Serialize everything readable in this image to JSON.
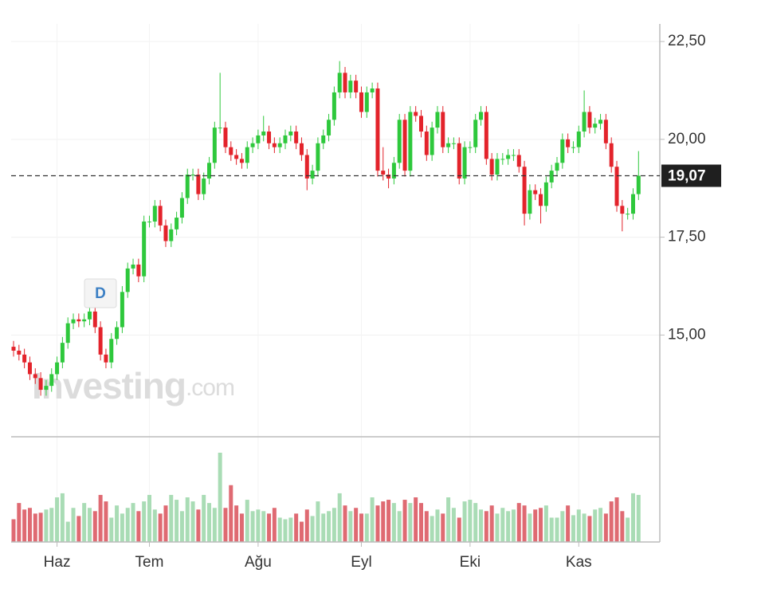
{
  "chart_data": {
    "type": "candlestick",
    "x": [
      null,
      null,
      null,
      null,
      null,
      null,
      null,
      null,
      "Haz",
      null,
      null,
      null,
      null,
      null,
      null,
      null,
      null,
      null,
      null,
      null,
      null,
      null,
      null,
      null,
      null,
      "Tem",
      null,
      null,
      null,
      null,
      null,
      null,
      null,
      null,
      null,
      null,
      null,
      null,
      null,
      null,
      null,
      null,
      null,
      null,
      null,
      "Ağu",
      null,
      null,
      null,
      null,
      null,
      null,
      null,
      null,
      null,
      null,
      null,
      null,
      null,
      null,
      null,
      null,
      null,
      null,
      "Eyl",
      null,
      null,
      null,
      null,
      null,
      null,
      null,
      null,
      null,
      null,
      null,
      null,
      null,
      null,
      null,
      null,
      null,
      null,
      null,
      "Eki",
      null,
      null,
      null,
      null,
      null,
      null,
      null,
      null,
      null,
      null,
      null,
      null,
      null,
      null,
      null,
      null,
      null,
      null,
      null,
      "Kas",
      null,
      null,
      null,
      null,
      null,
      null,
      null,
      null,
      null,
      null,
      null
    ],
    "open": [
      14.7,
      14.6,
      14.5,
      14.3,
      14.0,
      13.9,
      13.6,
      13.7,
      14.0,
      14.3,
      14.8,
      15.3,
      15.4,
      15.35,
      15.4,
      15.6,
      15.2,
      14.5,
      14.3,
      14.9,
      15.2,
      16.1,
      16.7,
      16.8,
      16.5,
      17.9,
      17.9,
      18.3,
      17.8,
      17.4,
      17.7,
      18.0,
      18.5,
      19.1,
      19.1,
      18.6,
      19.0,
      19.4,
      20.3,
      20.3,
      19.8,
      19.6,
      19.5,
      19.4,
      19.8,
      19.9,
      20.1,
      20.2,
      19.9,
      19.8,
      19.9,
      20.1,
      20.2,
      19.9,
      19.6,
      19.0,
      19.2,
      19.9,
      20.1,
      20.5,
      21.2,
      21.7,
      21.2,
      21.5,
      21.2,
      20.7,
      21.2,
      21.3,
      19.2,
      19.1,
      19.0,
      19.4,
      20.5,
      19.2,
      20.7,
      20.6,
      20.2,
      19.6,
      20.3,
      20.7,
      19.8,
      19.9,
      19.9,
      19.0,
      19.8,
      19.8,
      20.5,
      20.7,
      19.5,
      19.1,
      19.5,
      19.5,
      19.6,
      19.6,
      19.3,
      18.1,
      18.7,
      18.6,
      18.3,
      18.9,
      19.2,
      19.4,
      20.0,
      19.8,
      19.8,
      20.2,
      20.7,
      20.3,
      20.4,
      20.5,
      19.9,
      19.3,
      18.3,
      18.1,
      18.1,
      18.6
    ],
    "high": [
      14.85,
      14.75,
      14.65,
      14.45,
      14.15,
      14.05,
      13.85,
      14.15,
      14.45,
      14.95,
      15.45,
      15.55,
      15.55,
      15.55,
      15.75,
      15.75,
      15.35,
      14.65,
      15.05,
      15.35,
      16.25,
      16.85,
      16.95,
      16.95,
      18.05,
      18.05,
      18.45,
      18.45,
      17.95,
      17.85,
      18.15,
      18.65,
      19.25,
      19.25,
      19.25,
      19.15,
      19.55,
      20.45,
      21.7,
      20.45,
      19.95,
      19.75,
      19.65,
      19.95,
      20.05,
      20.25,
      20.6,
      20.35,
      20.05,
      20.05,
      20.25,
      20.35,
      20.35,
      20.05,
      19.75,
      19.35,
      20.05,
      20.25,
      20.65,
      21.35,
      22.0,
      21.85,
      21.65,
      21.65,
      21.35,
      21.35,
      21.45,
      21.45,
      19.8,
      19.25,
      19.55,
      20.65,
      20.65,
      20.85,
      20.85,
      20.75,
      20.35,
      20.45,
      20.85,
      20.85,
      20.05,
      20.05,
      20.05,
      19.95,
      19.95,
      20.65,
      20.85,
      20.85,
      19.65,
      19.65,
      19.65,
      19.75,
      19.75,
      19.75,
      19.45,
      18.85,
      18.85,
      18.75,
      19.05,
      19.35,
      19.55,
      20.15,
      20.15,
      19.95,
      20.35,
      21.25,
      20.85,
      20.55,
      20.65,
      20.65,
      20.05,
      19.45,
      18.45,
      18.25,
      18.75,
      19.7
    ],
    "low": [
      14.45,
      14.35,
      14.15,
      13.85,
      13.75,
      13.45,
      13.45,
      13.55,
      13.85,
      14.15,
      14.65,
      15.15,
      15.2,
      15.2,
      15.25,
      15.05,
      14.35,
      14.15,
      14.15,
      14.75,
      15.05,
      15.95,
      16.55,
      16.35,
      16.35,
      17.75,
      17.75,
      17.65,
      17.25,
      17.25,
      17.55,
      17.85,
      18.35,
      18.95,
      18.45,
      18.45,
      18.85,
      19.25,
      20.15,
      19.65,
      19.45,
      19.35,
      19.25,
      19.25,
      19.65,
      19.75,
      19.95,
      19.75,
      19.65,
      19.65,
      19.75,
      19.95,
      19.75,
      19.45,
      18.7,
      18.85,
      19.05,
      19.75,
      19.95,
      20.35,
      21.05,
      21.05,
      21.05,
      21.05,
      20.55,
      20.55,
      21.05,
      19.05,
      18.95,
      18.75,
      18.85,
      19.25,
      19.05,
      19.05,
      20.45,
      20.05,
      19.45,
      19.45,
      20.15,
      19.65,
      19.65,
      19.75,
      18.85,
      18.85,
      19.65,
      19.65,
      20.35,
      19.35,
      18.95,
      18.95,
      19.35,
      19.35,
      19.45,
      19.15,
      17.8,
      17.95,
      18.45,
      17.85,
      18.15,
      18.75,
      19.05,
      19.25,
      19.65,
      19.65,
      19.65,
      20.05,
      20.15,
      20.15,
      20.25,
      19.75,
      19.15,
      18.15,
      17.65,
      17.95,
      17.95,
      18.45
    ],
    "close": [
      14.6,
      14.5,
      14.3,
      14.0,
      13.9,
      13.6,
      13.7,
      14.0,
      14.3,
      14.8,
      15.3,
      15.4,
      15.35,
      15.4,
      15.6,
      15.2,
      14.5,
      14.3,
      14.9,
      15.2,
      16.1,
      16.7,
      16.8,
      16.5,
      17.9,
      17.9,
      18.3,
      17.8,
      17.4,
      17.7,
      18.0,
      18.5,
      19.1,
      19.1,
      18.6,
      19.0,
      19.4,
      20.3,
      20.3,
      19.8,
      19.6,
      19.5,
      19.4,
      19.8,
      19.9,
      20.1,
      20.2,
      19.9,
      19.8,
      19.9,
      20.1,
      20.2,
      19.9,
      19.6,
      19.0,
      19.2,
      19.9,
      20.1,
      20.5,
      21.2,
      21.7,
      21.2,
      21.5,
      21.2,
      20.7,
      21.2,
      21.3,
      19.2,
      19.1,
      19.0,
      19.4,
      20.5,
      19.2,
      20.7,
      20.6,
      20.2,
      19.6,
      20.3,
      20.7,
      19.8,
      19.9,
      19.9,
      19.0,
      19.8,
      19.8,
      20.5,
      20.7,
      19.5,
      19.1,
      19.5,
      19.5,
      19.6,
      19.6,
      19.3,
      18.1,
      18.7,
      18.6,
      18.3,
      18.9,
      19.2,
      19.4,
      20.0,
      19.8,
      19.8,
      20.2,
      20.7,
      20.3,
      20.4,
      20.5,
      19.9,
      19.3,
      18.3,
      18.1,
      18.1,
      18.6,
      19.07
    ],
    "volume": [
      28,
      48,
      40,
      42,
      35,
      36,
      40,
      42,
      55,
      60,
      25,
      42,
      32,
      48,
      42,
      38,
      58,
      50,
      30,
      45,
      35,
      42,
      48,
      38,
      50,
      58,
      40,
      35,
      45,
      58,
      52,
      38,
      55,
      50,
      40,
      58,
      48,
      42,
      110,
      42,
      70,
      45,
      35,
      52,
      38,
      40,
      38,
      35,
      42,
      30,
      28,
      30,
      35,
      25,
      40,
      32,
      50,
      35,
      38,
      42,
      60,
      45,
      38,
      42,
      35,
      35,
      55,
      45,
      50,
      52,
      48,
      38,
      52,
      48,
      55,
      48,
      38,
      32,
      40,
      35,
      55,
      42,
      30,
      50,
      52,
      48,
      40,
      38,
      45,
      35,
      42,
      38,
      40,
      48,
      45,
      35,
      40,
      42,
      45,
      30,
      30,
      38,
      45,
      33,
      40,
      35,
      32,
      40,
      42,
      35,
      50,
      55,
      38,
      30,
      60,
      58
    ],
    "up_color": "#2ec83c",
    "down_color": "#e3232b",
    "volume_up_color": "#a9dcb5",
    "volume_down_color": "#df6a72",
    "ylim": [
      12.4,
      22.95
    ],
    "yticks": [
      {
        "value": 15,
        "label": "15,00"
      },
      {
        "value": 17.5,
        "label": "17,50"
      },
      {
        "value": 20,
        "label": "20,00"
      },
      {
        "value": 22.5,
        "label": "22,50"
      }
    ],
    "grid": true,
    "last_price": {
      "value": 19.07,
      "label": "19,07"
    },
    "annotation": "D",
    "watermark_brand": "Investing",
    "watermark_domain": ".com"
  }
}
